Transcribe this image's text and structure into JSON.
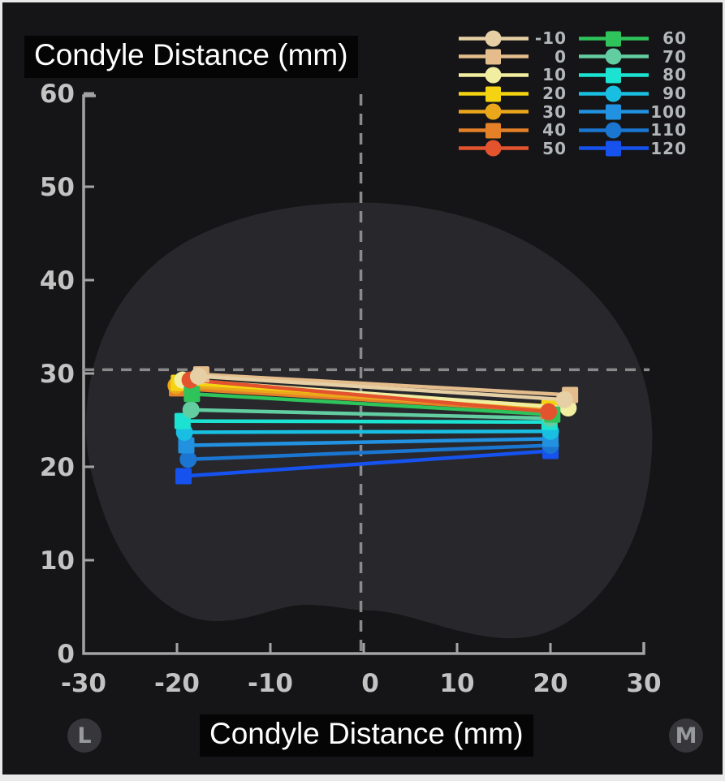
{
  "chart_data": {
    "type": "line",
    "title": "Condyle Distance (mm)",
    "xlabel": "Condyle Distance (mm)",
    "ylabel": "Condyle Distance (mm)",
    "xlim": [
      -30,
      30
    ],
    "ylim": [
      0,
      60
    ],
    "xticks": [
      -30,
      -20,
      -10,
      0,
      10,
      20,
      30
    ],
    "yticks": [
      0,
      10,
      20,
      30,
      40,
      50,
      60
    ],
    "grid": false,
    "legend_position": "top-right",
    "crosshair": {
      "x": -0.3,
      "y": 30.4
    },
    "orientation_labels": {
      "left": "L",
      "right": "M"
    },
    "series": [
      {
        "name": "-10",
        "marker": "circle",
        "color": "#e6cfa4",
        "points": [
          [
            -17.7,
            29.7
          ],
          [
            21.5,
            27.2
          ]
        ]
      },
      {
        "name": "0",
        "marker": "square",
        "color": "#e5bd8d",
        "points": [
          [
            -17.4,
            29.9
          ],
          [
            22.1,
            27.7
          ]
        ]
      },
      {
        "name": "10",
        "marker": "circle",
        "color": "#f1eda1",
        "points": [
          [
            -19.4,
            29.3
          ],
          [
            21.9,
            26.3
          ]
        ]
      },
      {
        "name": "20",
        "marker": "square",
        "color": "#f4d411",
        "points": [
          [
            -19.8,
            29.0
          ],
          [
            19.9,
            26.5
          ]
        ]
      },
      {
        "name": "30",
        "marker": "circle",
        "color": "#eaa71b",
        "points": [
          [
            -20.1,
            28.7
          ],
          [
            19.8,
            26.2
          ]
        ]
      },
      {
        "name": "40",
        "marker": "square",
        "color": "#e48128",
        "points": [
          [
            -20.0,
            28.4
          ],
          [
            19.8,
            26.0
          ]
        ]
      },
      {
        "name": "50",
        "marker": "circle",
        "color": "#e2532e",
        "points": [
          [
            -18.6,
            29.3
          ],
          [
            19.8,
            25.9
          ]
        ]
      },
      {
        "name": "60",
        "marker": "square",
        "color": "#2fc35c",
        "points": [
          [
            -18.4,
            27.8
          ],
          [
            20.2,
            25.6
          ]
        ]
      },
      {
        "name": "70",
        "marker": "circle",
        "color": "#63cda2",
        "points": [
          [
            -18.5,
            26.1
          ],
          [
            20.0,
            25.2
          ]
        ]
      },
      {
        "name": "80",
        "marker": "square",
        "color": "#1ce2d2",
        "points": [
          [
            -19.4,
            24.9
          ],
          [
            19.9,
            24.8
          ]
        ]
      },
      {
        "name": "90",
        "marker": "circle",
        "color": "#19bfe2",
        "points": [
          [
            -19.2,
            23.7
          ],
          [
            20.0,
            23.8
          ]
        ]
      },
      {
        "name": "100",
        "marker": "square",
        "color": "#2191e0",
        "points": [
          [
            -19.0,
            22.3
          ],
          [
            20.0,
            23.0
          ]
        ]
      },
      {
        "name": "110",
        "marker": "circle",
        "color": "#1b76d1",
        "points": [
          [
            -18.8,
            20.8
          ],
          [
            20.0,
            22.3
          ]
        ]
      },
      {
        "name": "120",
        "marker": "square",
        "color": "#1552ee",
        "points": [
          [
            -19.3,
            19.0
          ],
          [
            20.0,
            21.7
          ]
        ]
      }
    ],
    "legend_columns": [
      [
        "-10",
        "0",
        "10",
        "20",
        "30",
        "40",
        "50"
      ],
      [
        "60",
        "70",
        "80",
        "90",
        "100",
        "110",
        "120"
      ]
    ],
    "draw_order": [
      "120",
      "110",
      "100",
      "90",
      "80",
      "70",
      "40",
      "30",
      "20",
      "10",
      "60",
      "50",
      "0",
      "-10"
    ]
  },
  "style_colors": {
    "background": "#151517",
    "anatomy_fill": "#28282c",
    "axis": "#a3a3a3",
    "tick_label": "#c3c3c3",
    "dashed_line": "#8a8a8a",
    "label_box_bg": "#050505",
    "label_text": "#ffffff",
    "legend_text": "#b3b7ba",
    "badge_bg": "#37373b",
    "badge_text": "#97999d"
  }
}
